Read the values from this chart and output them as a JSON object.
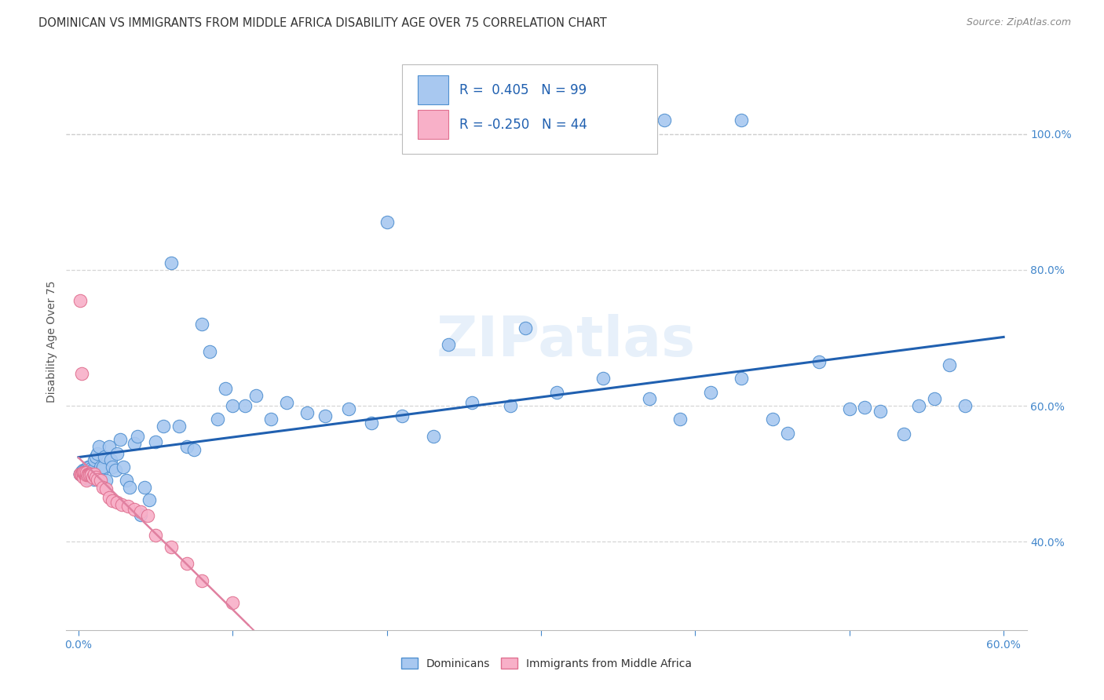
{
  "title": "DOMINICAN VS IMMIGRANTS FROM MIDDLE AFRICA DISABILITY AGE OVER 75 CORRELATION CHART",
  "source": "Source: ZipAtlas.com",
  "ylabel": "Disability Age Over 75",
  "xlim": [
    -0.008,
    0.615
  ],
  "ylim": [
    0.27,
    1.12
  ],
  "xticks": [
    0.0,
    0.1,
    0.2,
    0.3,
    0.4,
    0.5,
    0.6
  ],
  "xticklabels": [
    "0.0%",
    "",
    "",
    "",
    "",
    "",
    "60.0%"
  ],
  "yticks_right": [
    0.4,
    0.6,
    0.8,
    1.0
  ],
  "ytick_right_labels": [
    "40.0%",
    "60.0%",
    "80.0%",
    "100.0%"
  ],
  "dominicans_color": "#a8c8f0",
  "dominicans_edge": "#5090d0",
  "immigrants_color": "#f8b0c8",
  "immigrants_edge": "#e07090",
  "trend_dominicans_color": "#2060b0",
  "trend_immigrants_color": "#e080a0",
  "legend_text_color": "#2060b0",
  "watermark": "ZIPatlas",
  "title_color": "#333333",
  "source_color": "#888888",
  "grid_color": "#cccccc",
  "tick_color": "#4488cc",
  "ylabel_color": "#555555",
  "dom_x": [
    0.001,
    0.001,
    0.001,
    0.002,
    0.002,
    0.002,
    0.002,
    0.003,
    0.003,
    0.003,
    0.003,
    0.004,
    0.004,
    0.004,
    0.005,
    0.005,
    0.005,
    0.006,
    0.006,
    0.006,
    0.007,
    0.007,
    0.007,
    0.008,
    0.008,
    0.008,
    0.009,
    0.009,
    0.01,
    0.01,
    0.011,
    0.011,
    0.012,
    0.012,
    0.013,
    0.014,
    0.015,
    0.016,
    0.017,
    0.018,
    0.02,
    0.021,
    0.022,
    0.024,
    0.025,
    0.027,
    0.029,
    0.031,
    0.033,
    0.036,
    0.038,
    0.04,
    0.043,
    0.046,
    0.05,
    0.055,
    0.06,
    0.065,
    0.07,
    0.075,
    0.08,
    0.085,
    0.09,
    0.095,
    0.1,
    0.108,
    0.115,
    0.125,
    0.135,
    0.148,
    0.16,
    0.175,
    0.19,
    0.21,
    0.23,
    0.255,
    0.28,
    0.31,
    0.34,
    0.37,
    0.39,
    0.41,
    0.43,
    0.45,
    0.46,
    0.48,
    0.5,
    0.51,
    0.52,
    0.535,
    0.545,
    0.555,
    0.565,
    0.575,
    0.38,
    0.43,
    0.2,
    0.24,
    0.29
  ],
  "dom_y": [
    0.5,
    0.5,
    0.5,
    0.5,
    0.5,
    0.498,
    0.503,
    0.498,
    0.502,
    0.5,
    0.505,
    0.498,
    0.505,
    0.495,
    0.502,
    0.5,
    0.498,
    0.51,
    0.493,
    0.502,
    0.51,
    0.497,
    0.5,
    0.508,
    0.495,
    0.503,
    0.5,
    0.505,
    0.52,
    0.492,
    0.525,
    0.497,
    0.53,
    0.495,
    0.54,
    0.51,
    0.505,
    0.51,
    0.525,
    0.49,
    0.54,
    0.52,
    0.51,
    0.505,
    0.53,
    0.55,
    0.51,
    0.49,
    0.48,
    0.545,
    0.555,
    0.44,
    0.48,
    0.462,
    0.547,
    0.57,
    0.81,
    0.57,
    0.54,
    0.535,
    0.72,
    0.68,
    0.58,
    0.625,
    0.6,
    0.6,
    0.615,
    0.58,
    0.605,
    0.59,
    0.585,
    0.595,
    0.575,
    0.585,
    0.555,
    0.605,
    0.6,
    0.62,
    0.64,
    0.61,
    0.58,
    0.62,
    0.64,
    0.58,
    0.56,
    0.665,
    0.595,
    0.598,
    0.592,
    0.558,
    0.6,
    0.61,
    0.66,
    0.6,
    1.02,
    1.02,
    0.87,
    0.69,
    0.715
  ],
  "imm_x": [
    0.001,
    0.001,
    0.001,
    0.002,
    0.002,
    0.002,
    0.002,
    0.003,
    0.003,
    0.003,
    0.003,
    0.004,
    0.004,
    0.004,
    0.005,
    0.005,
    0.005,
    0.006,
    0.006,
    0.007,
    0.007,
    0.008,
    0.008,
    0.009,
    0.01,
    0.01,
    0.011,
    0.012,
    0.014,
    0.016,
    0.018,
    0.02,
    0.022,
    0.025,
    0.028,
    0.032,
    0.036,
    0.04,
    0.045,
    0.05,
    0.06,
    0.07,
    0.08,
    0.1
  ],
  "imm_y": [
    0.5,
    0.755,
    0.5,
    0.5,
    0.5,
    0.498,
    0.648,
    0.5,
    0.498,
    0.495,
    0.502,
    0.498,
    0.5,
    0.502,
    0.49,
    0.498,
    0.502,
    0.5,
    0.498,
    0.5,
    0.498,
    0.5,
    0.498,
    0.495,
    0.498,
    0.5,
    0.495,
    0.492,
    0.49,
    0.48,
    0.478,
    0.465,
    0.46,
    0.458,
    0.455,
    0.452,
    0.448,
    0.444,
    0.438,
    0.41,
    0.392,
    0.368,
    0.342,
    0.31
  ]
}
